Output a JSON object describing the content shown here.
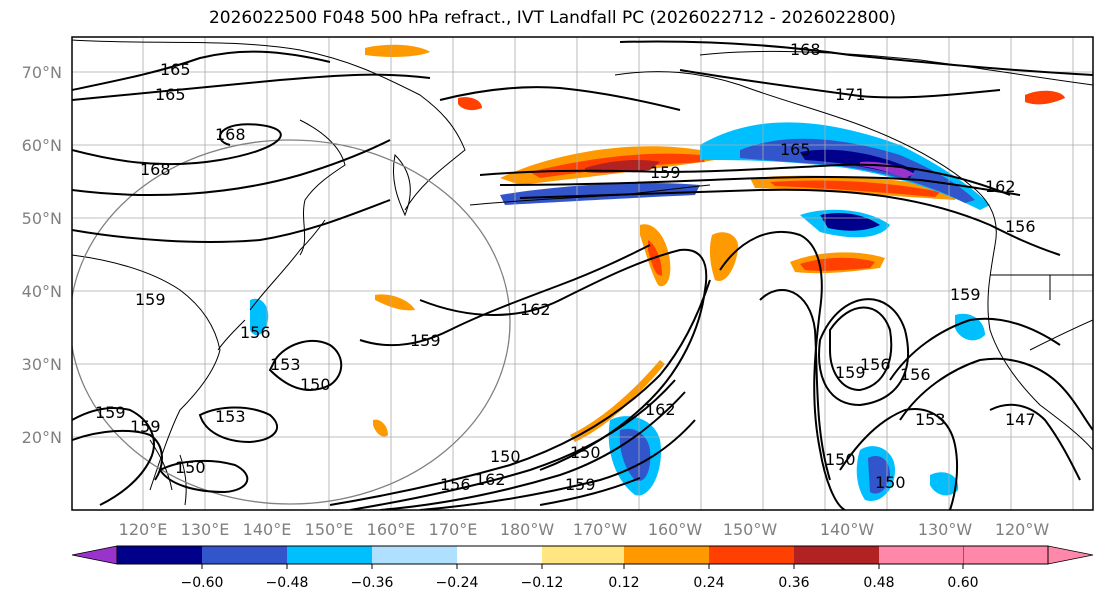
{
  "title": "2026022500 F048 500 hPa refract., IVT Landfall PC (2026022712 - 2026022800)",
  "lat_labels": [
    "70°N",
    "60°N",
    "50°N",
    "40°N",
    "30°N",
    "20°N"
  ],
  "lon_labels": [
    "120°E",
    "130°E",
    "140°E",
    "150°E",
    "160°E",
    "170°E",
    "180°W",
    "170°W",
    "160°W",
    "150°W",
    "140°W",
    "130°W",
    "120°W"
  ],
  "contour_labels": [
    "165",
    "165",
    "168",
    "168",
    "168",
    "171",
    "165",
    "159",
    "162",
    "156",
    "162",
    "159",
    "150",
    "153",
    "159",
    "159",
    "150",
    "153",
    "150",
    "159",
    "156",
    "162",
    "150",
    "162",
    "156",
    "159",
    "150",
    "150",
    "156",
    "159",
    "153",
    "156",
    "147",
    "159"
  ],
  "colorbar": {
    "colors": [
      "#9933cc",
      "#00008b",
      "#3355cc",
      "#00bfff",
      "#b0e0ff",
      "#ffffff",
      "#ffe680",
      "#ff9900",
      "#ff4000",
      "#b22222",
      "#ff88aa"
    ],
    "tick_labels": [
      "−0.60",
      "−0.48",
      "−0.36",
      "−0.24",
      "−0.12",
      "0.12",
      "0.24",
      "0.36",
      "0.48",
      "0.60"
    ]
  }
}
